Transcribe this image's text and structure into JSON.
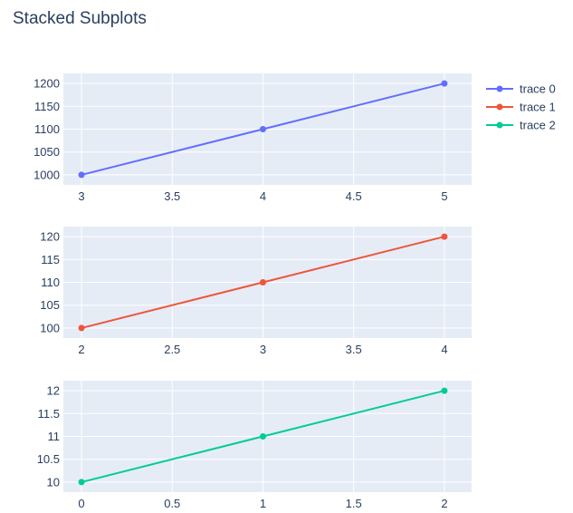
{
  "chart_data": {
    "type": "line",
    "title": "Stacked Subplots",
    "legend_position": "top-right",
    "background": "#E5ECF6",
    "grid": true,
    "subplots": [
      {
        "series_name": "trace 0",
        "color": "#636EFA",
        "x": [
          3,
          4,
          5
        ],
        "y": [
          1000,
          1100,
          1200
        ],
        "xlim": [
          2.9,
          5.15
        ],
        "ylim": [
          978,
          1222
        ],
        "xticks": [
          3,
          3.5,
          4,
          4.5,
          5
        ],
        "xtick_labels": [
          "3",
          "3.5",
          "4",
          "4.5",
          "5"
        ],
        "yticks": [
          1000,
          1050,
          1100,
          1150,
          1200
        ],
        "ytick_labels": [
          "1000",
          "1050",
          "1100",
          "1150",
          "1200"
        ]
      },
      {
        "series_name": "trace 1",
        "color": "#EF553B",
        "x": [
          2,
          3,
          4
        ],
        "y": [
          100,
          110,
          120
        ],
        "xlim": [
          1.9,
          4.15
        ],
        "ylim": [
          97.8,
          122.2
        ],
        "xticks": [
          2,
          2.5,
          3,
          3.5,
          4
        ],
        "xtick_labels": [
          "2",
          "2.5",
          "3",
          "3.5",
          "4"
        ],
        "yticks": [
          100,
          105,
          110,
          115,
          120
        ],
        "ytick_labels": [
          "100",
          "105",
          "110",
          "115",
          "120"
        ]
      },
      {
        "series_name": "trace 2",
        "color": "#00CC96",
        "x": [
          0,
          1,
          2
        ],
        "y": [
          10,
          11,
          12
        ],
        "xlim": [
          -0.1,
          2.15
        ],
        "ylim": [
          9.78,
          12.22
        ],
        "xticks": [
          0,
          0.5,
          1,
          1.5,
          2
        ],
        "xtick_labels": [
          "0",
          "0.5",
          "1",
          "1.5",
          "2"
        ],
        "yticks": [
          10,
          10.5,
          11,
          11.5,
          12
        ],
        "ytick_labels": [
          "10",
          "10.5",
          "11",
          "11.5",
          "12"
        ]
      }
    ]
  }
}
